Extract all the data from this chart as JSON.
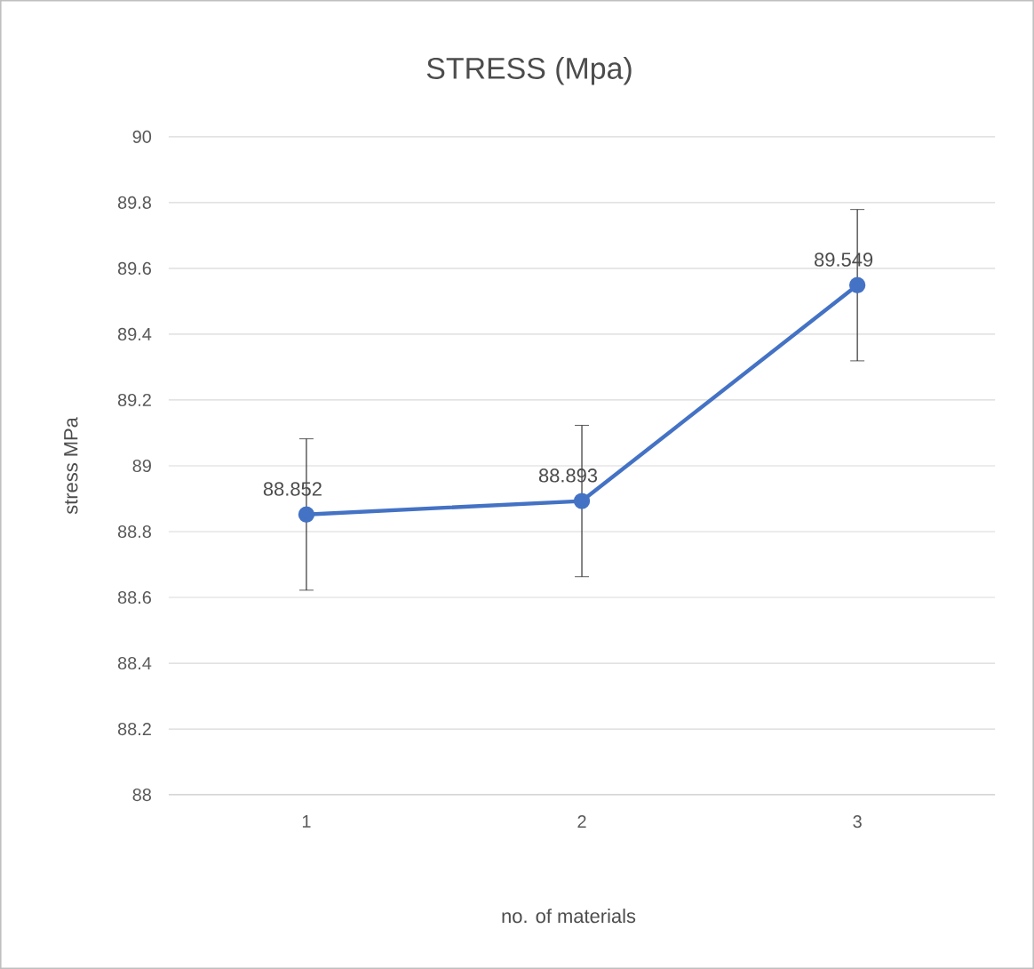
{
  "chart_data": {
    "type": "line",
    "title": "STRESS (Mpa)",
    "xlabel": "no. of materials",
    "ylabel": "stress MPa",
    "categories": [
      "1",
      "2",
      "3"
    ],
    "values": [
      88.852,
      88.893,
      89.549
    ],
    "errors": [
      0.23,
      0.23,
      0.23
    ],
    "color": "#4472c4",
    "marker": "circle",
    "line_style": "solid",
    "ylim": [
      88,
      90
    ],
    "yticks": [
      88,
      88.2,
      88.4,
      88.6,
      88.8,
      89,
      89.2,
      89.4,
      89.6,
      89.8,
      90
    ],
    "grid": "y",
    "data_labels": true
  }
}
